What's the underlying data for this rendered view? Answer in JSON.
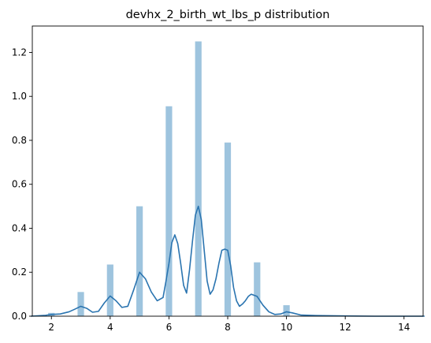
{
  "chart_data": {
    "type": "bar",
    "title": "devhx_2_birth_wt_lbs_p distribution",
    "xlabel": "",
    "ylabel": "",
    "xlim": [
      1.35,
      14.65
    ],
    "ylim": [
      0,
      1.32
    ],
    "xticks": [
      "2",
      "4",
      "6",
      "8",
      "10",
      "12",
      "14"
    ],
    "yticks": [
      "0.0",
      "0.2",
      "0.4",
      "0.6",
      "0.8",
      "1.0",
      "1.2"
    ],
    "grid": false,
    "bar_color": "#9ec4de",
    "line_color": "#2a74b0",
    "histogram": {
      "bar_width": 0.22,
      "bars": [
        {
          "x": 2,
          "value": 0.015
        },
        {
          "x": 3,
          "value": 0.11
        },
        {
          "x": 4,
          "value": 0.235
        },
        {
          "x": 5,
          "value": 0.5
        },
        {
          "x": 6,
          "value": 0.955
        },
        {
          "x": 7,
          "value": 1.25
        },
        {
          "x": 8,
          "value": 0.79
        },
        {
          "x": 9,
          "value": 0.245
        },
        {
          "x": 10,
          "value": 0.05
        },
        {
          "x": 11,
          "value": 0.003
        }
      ]
    },
    "kde": {
      "x": [
        1.3,
        1.8,
        2.0,
        2.3,
        2.6,
        2.8,
        3.0,
        3.2,
        3.4,
        3.6,
        3.8,
        4.0,
        4.2,
        4.4,
        4.6,
        4.8,
        5.0,
        5.2,
        5.4,
        5.6,
        5.8,
        5.9,
        6.0,
        6.1,
        6.2,
        6.3,
        6.4,
        6.5,
        6.6,
        6.7,
        6.8,
        6.9,
        7.0,
        7.1,
        7.2,
        7.3,
        7.4,
        7.5,
        7.6,
        7.7,
        7.8,
        7.9,
        8.0,
        8.1,
        8.2,
        8.3,
        8.4,
        8.5,
        8.6,
        8.7,
        8.8,
        9.0,
        9.2,
        9.4,
        9.6,
        9.8,
        10.0,
        10.2,
        10.5,
        11.0,
        11.5,
        12.0,
        13.0,
        14.0,
        14.7
      ],
      "y": [
        0.0,
        0.004,
        0.008,
        0.01,
        0.02,
        0.032,
        0.045,
        0.036,
        0.018,
        0.022,
        0.06,
        0.092,
        0.07,
        0.04,
        0.045,
        0.12,
        0.2,
        0.17,
        0.11,
        0.07,
        0.085,
        0.16,
        0.24,
        0.335,
        0.37,
        0.33,
        0.24,
        0.14,
        0.105,
        0.21,
        0.34,
        0.46,
        0.5,
        0.44,
        0.3,
        0.16,
        0.1,
        0.12,
        0.17,
        0.24,
        0.3,
        0.305,
        0.3,
        0.23,
        0.13,
        0.07,
        0.045,
        0.055,
        0.07,
        0.09,
        0.1,
        0.09,
        0.05,
        0.02,
        0.008,
        0.01,
        0.02,
        0.015,
        0.005,
        0.003,
        0.002,
        0.001,
        0.0,
        0.0,
        0.0
      ]
    }
  }
}
